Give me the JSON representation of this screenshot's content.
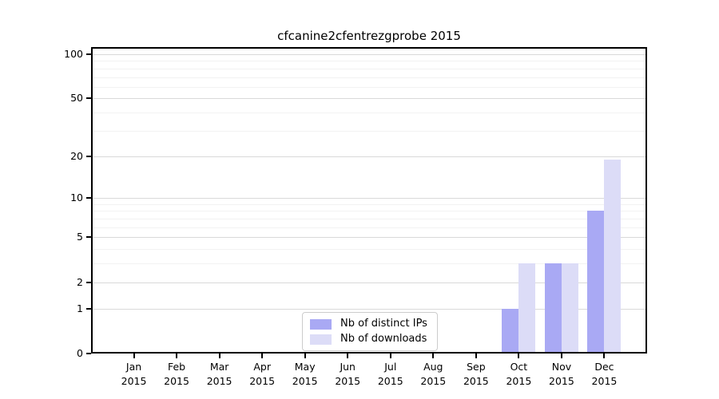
{
  "chart_data": {
    "type": "bar",
    "title": "cfcanine2cfentrezgprobe 2015",
    "categories": [
      "Jan",
      "Feb",
      "Mar",
      "Apr",
      "May",
      "Jun",
      "Jul",
      "Aug",
      "Sep",
      "Oct",
      "Nov",
      "Dec"
    ],
    "year": "2015",
    "series": [
      {
        "name": "Nb of distinct IPs",
        "color": "#a9a9f4",
        "values": [
          0,
          0,
          0,
          0,
          0,
          0,
          0,
          0,
          0,
          1,
          3,
          8
        ]
      },
      {
        "name": "Nb of downloads",
        "color": "#dcdcf7",
        "values": [
          0,
          0,
          0,
          0,
          0,
          0,
          0,
          0,
          0,
          3,
          3,
          19
        ]
      }
    ],
    "yticks": [
      0,
      1,
      2,
      5,
      10,
      20,
      50,
      100
    ],
    "yticks_minor": [
      3,
      4,
      6,
      7,
      8,
      9,
      30,
      40,
      60,
      70,
      80,
      90
    ],
    "yscale": "log1p",
    "ylim": [
      0,
      112
    ],
    "xlabel": "",
    "ylabel": "",
    "grid": true,
    "legend_position": "lower center"
  },
  "colors": {
    "background": "#ffffff",
    "major_grid": "#d9d9d9",
    "minor_grid": "#f2f2f2",
    "spine": "#000000",
    "legend_border": "#cccccc"
  }
}
